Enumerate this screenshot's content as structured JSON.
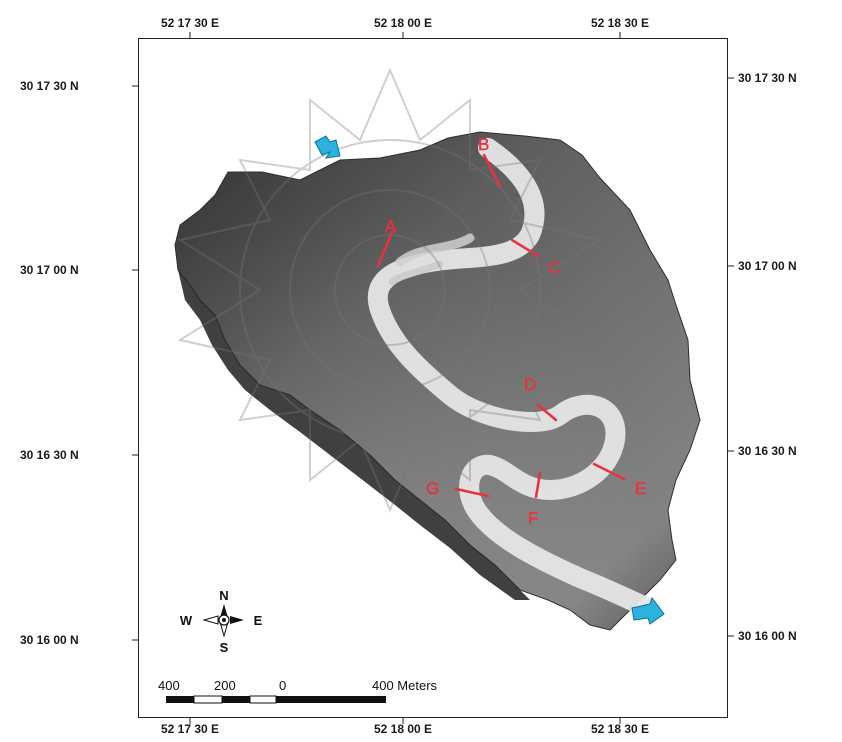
{
  "map": {
    "lon_labels": [
      "52 17 30 E",
      "52 18 00 E",
      "52 18 30 E"
    ],
    "lat_labels": [
      "30 17 30 N",
      "30 17 00 N",
      "30 16 30 N",
      "30 16 00 N"
    ],
    "section_labels": [
      "A",
      "B",
      "C",
      "D",
      "E",
      "F",
      "G"
    ],
    "compass": {
      "north": "N",
      "south": "S",
      "east": "E",
      "west": "W"
    },
    "scale_bar": {
      "ticks": [
        "400",
        "200",
        "0",
        "400 Meters"
      ]
    },
    "colors": {
      "label_red": "#e8323c",
      "arrow_blue": "#2bb3e0",
      "river": "#e6e6e6"
    }
  }
}
